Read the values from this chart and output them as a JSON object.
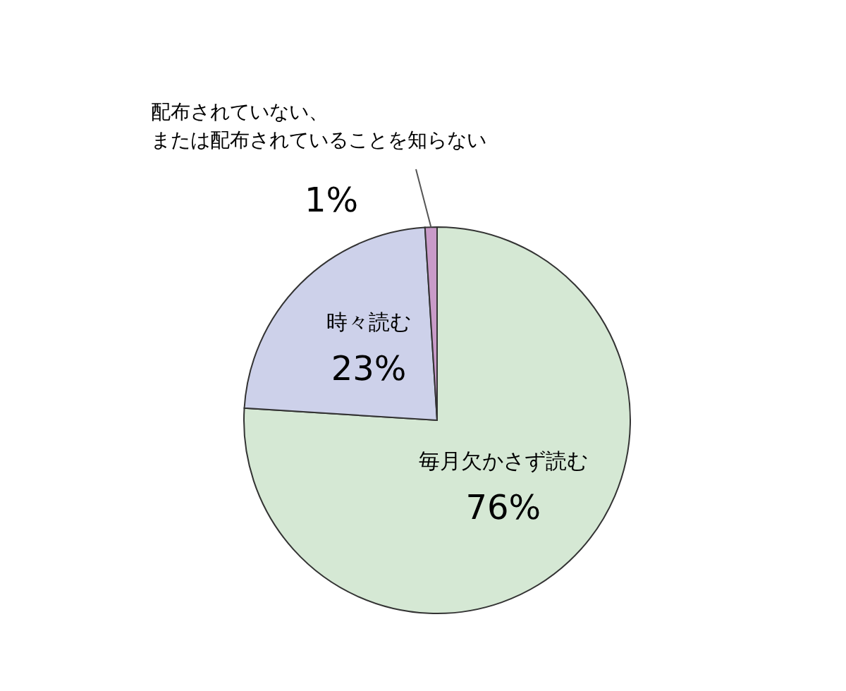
{
  "chart_data": {
    "type": "pie",
    "categories": [
      "毎月欠かさず読む",
      "時々読む",
      "配布されていない、または配布されていることを知らない"
    ],
    "values": [
      76,
      23,
      1
    ],
    "colors": [
      "#d5e8d4",
      "#cdd1ea",
      "#c99bc9"
    ],
    "value_labels": [
      "76%",
      "23%",
      "1%"
    ]
  }
}
